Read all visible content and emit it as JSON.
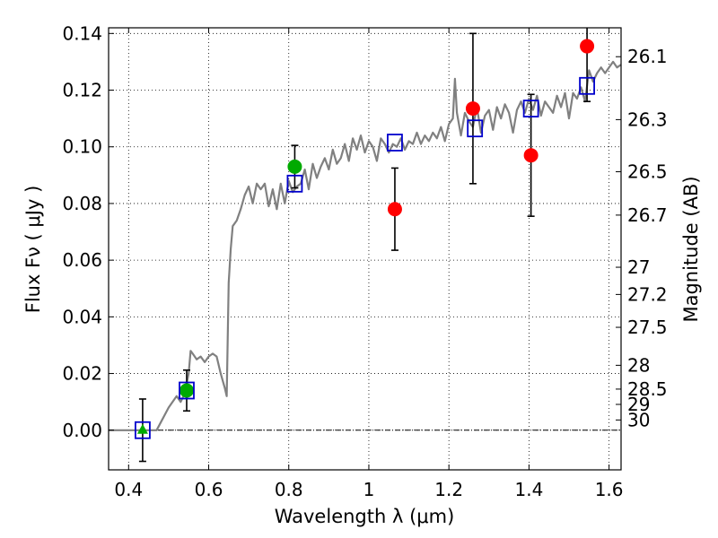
{
  "chart_data": {
    "type": "scatter",
    "title": "",
    "xlabel": "Wavelength  λ (μm)",
    "ylabel": "Flux  Fν  ( μJy )",
    "y2label": "Magnitude (AB)",
    "xlim": [
      0.35,
      1.63
    ],
    "ylim": [
      -0.014,
      0.142
    ],
    "xticks": [
      0.4,
      0.6,
      0.8,
      1.0,
      1.2,
      1.4,
      1.6
    ],
    "xtick_labels": [
      "0.4",
      "0.6",
      "0.8",
      "1",
      "1.2",
      "1.4",
      "1.6"
    ],
    "yticks": [
      0.0,
      0.02,
      0.04,
      0.06,
      0.08,
      0.1,
      0.12,
      0.14
    ],
    "ytick_labels": [
      "0.00",
      "0.02",
      "0.04",
      "0.06",
      "0.08",
      "0.10",
      "0.12",
      "0.14"
    ],
    "mag_ticks": [
      {
        "label": "26.1",
        "flux": 0.1318
      },
      {
        "label": "26.3",
        "flux": 0.1096
      },
      {
        "label": "26.5",
        "flux": 0.0912
      },
      {
        "label": "26.7",
        "flux": 0.0759
      },
      {
        "label": "27",
        "flux": 0.0575
      },
      {
        "label": "27.2",
        "flux": 0.0479
      },
      {
        "label": "27.5",
        "flux": 0.0363
      },
      {
        "label": "28",
        "flux": 0.0229
      },
      {
        "label": "28.5",
        "flux": 0.0145
      },
      {
        "label": "29",
        "flux": 0.0091
      },
      {
        "label": "30",
        "flux": 0.0036
      }
    ],
    "grid": true,
    "series": [
      {
        "name": "model-spectrum",
        "kind": "line",
        "color": "#808080",
        "x": [
          0.35,
          0.47,
          0.5,
          0.52,
          0.53,
          0.54,
          0.55,
          0.555,
          0.56,
          0.57,
          0.58,
          0.59,
          0.6,
          0.61,
          0.62,
          0.63,
          0.64,
          0.645,
          0.65,
          0.655,
          0.66,
          0.67,
          0.68,
          0.69,
          0.7,
          0.71,
          0.72,
          0.73,
          0.74,
          0.75,
          0.76,
          0.77,
          0.78,
          0.79,
          0.8,
          0.81,
          0.82,
          0.83,
          0.84,
          0.85,
          0.86,
          0.87,
          0.88,
          0.89,
          0.9,
          0.91,
          0.92,
          0.93,
          0.94,
          0.95,
          0.96,
          0.97,
          0.98,
          0.99,
          1.0,
          1.01,
          1.02,
          1.03,
          1.04,
          1.05,
          1.06,
          1.07,
          1.08,
          1.09,
          1.1,
          1.11,
          1.12,
          1.13,
          1.14,
          1.15,
          1.16,
          1.17,
          1.18,
          1.19,
          1.2,
          1.21,
          1.215,
          1.22,
          1.23,
          1.24,
          1.25,
          1.26,
          1.27,
          1.28,
          1.29,
          1.3,
          1.31,
          1.32,
          1.33,
          1.34,
          1.35,
          1.36,
          1.37,
          1.38,
          1.39,
          1.4,
          1.41,
          1.42,
          1.43,
          1.44,
          1.45,
          1.46,
          1.47,
          1.48,
          1.49,
          1.5,
          1.51,
          1.52,
          1.53,
          1.54,
          1.55,
          1.56,
          1.57,
          1.58,
          1.59,
          1.6,
          1.61,
          1.62,
          1.63
        ],
        "y": [
          0.0,
          0.0,
          0.008,
          0.012,
          0.01,
          0.013,
          0.02,
          0.028,
          0.027,
          0.025,
          0.026,
          0.024,
          0.026,
          0.027,
          0.026,
          0.02,
          0.015,
          0.012,
          0.052,
          0.064,
          0.072,
          0.074,
          0.078,
          0.083,
          0.086,
          0.08,
          0.087,
          0.085,
          0.087,
          0.079,
          0.085,
          0.078,
          0.087,
          0.08,
          0.088,
          0.084,
          0.086,
          0.087,
          0.092,
          0.085,
          0.094,
          0.089,
          0.093,
          0.096,
          0.092,
          0.099,
          0.094,
          0.096,
          0.101,
          0.095,
          0.103,
          0.099,
          0.104,
          0.098,
          0.102,
          0.1,
          0.095,
          0.103,
          0.101,
          0.098,
          0.101,
          0.1,
          0.103,
          0.099,
          0.102,
          0.101,
          0.105,
          0.101,
          0.104,
          0.102,
          0.105,
          0.103,
          0.107,
          0.102,
          0.108,
          0.11,
          0.124,
          0.112,
          0.104,
          0.112,
          0.109,
          0.107,
          0.114,
          0.105,
          0.111,
          0.113,
          0.106,
          0.114,
          0.11,
          0.115,
          0.112,
          0.105,
          0.113,
          0.116,
          0.112,
          0.117,
          0.113,
          0.118,
          0.111,
          0.116,
          0.114,
          0.112,
          0.118,
          0.114,
          0.119,
          0.11,
          0.119,
          0.117,
          0.121,
          0.116,
          0.127,
          0.123,
          0.126,
          0.128,
          0.126,
          0.128,
          0.13,
          0.128,
          0.129
        ]
      },
      {
        "name": "model-photometry",
        "kind": "open-square",
        "color": "#0000cc",
        "x": [
          0.435,
          0.545,
          0.815,
          1.065,
          1.265,
          1.405,
          1.545
        ],
        "y": [
          0.0,
          0.014,
          0.087,
          0.1015,
          0.1065,
          0.1135,
          0.1215
        ]
      },
      {
        "name": "detections-green",
        "kind": "circle",
        "color": "#00aa00",
        "x": [
          0.545,
          0.815
        ],
        "y": [
          0.014,
          0.093
        ],
        "err": [
          0.0072,
          0.0075
        ]
      },
      {
        "name": "detections-red",
        "kind": "circle",
        "color": "#ff0000",
        "x": [
          1.065,
          1.26,
          1.405,
          1.545
        ],
        "y": [
          0.078,
          0.1135,
          0.097,
          0.1355
        ],
        "err": [
          0.0145,
          0.0265,
          0.0215,
          0.0195
        ]
      },
      {
        "name": "upper-limit",
        "kind": "triangle",
        "color": "#00aa00",
        "x": [
          0.435
        ],
        "y": [
          0.0
        ],
        "err": [
          0.011
        ]
      }
    ]
  }
}
